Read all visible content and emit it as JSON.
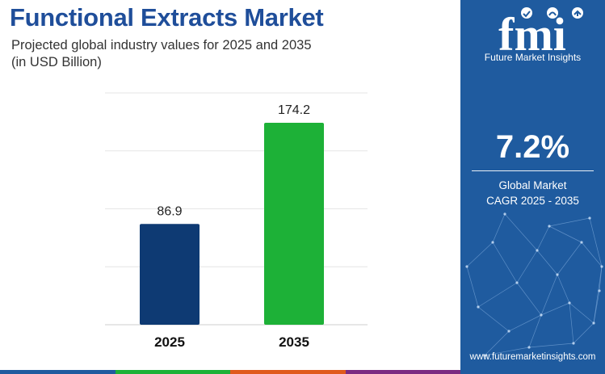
{
  "header": {
    "title": "Functional Extracts Market",
    "subtitle_line1": "Projected global industry values for 2025 and 2035",
    "subtitle_line2": "(in USD Billion)"
  },
  "chart_data": {
    "type": "bar",
    "categories": [
      "2025",
      "2035"
    ],
    "values": [
      86.9,
      174.2
    ],
    "value_labels": [
      "86.9",
      "174.2"
    ],
    "bar_colors": [
      "#0e3a73",
      "#1db137"
    ],
    "grid": true,
    "title": "Functional Extracts Market",
    "xlabel": "",
    "ylabel": ""
  },
  "sidebar": {
    "brand_short": "fmi",
    "brand_name": "Future Market Insights",
    "cagr_value": "7.2%",
    "cagr_label_line1": "Global Market",
    "cagr_label_line2": "CAGR 2025 - 2035",
    "website": "www.futuremarketinsights.com"
  },
  "colors": {
    "title": "#1f4e9a",
    "sidebar_bg": "#1f5b9f",
    "strip": [
      "#1f5b9f",
      "#1db137",
      "#e05a1c",
      "#7b2b82"
    ]
  }
}
